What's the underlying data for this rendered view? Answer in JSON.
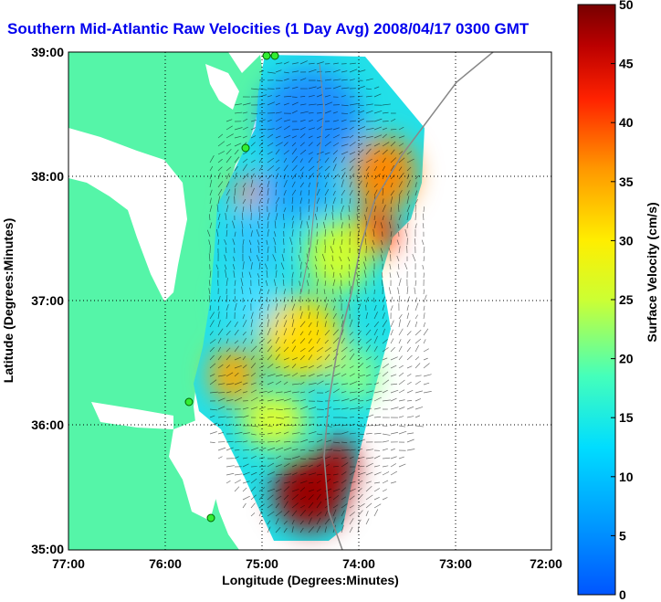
{
  "title": "Southern Mid-Atlantic Raw Velocities (1 Day Avg) 2008/04/17 0300 GMT",
  "x_axis": {
    "label": "Longitude (Degrees:Minutes)",
    "ticks": [
      "77:00",
      "76:00",
      "75:00",
      "74:00",
      "73:00",
      "72:00"
    ]
  },
  "y_axis": {
    "label": "Latitude (Degrees:Minutes)",
    "ticks": [
      "39:00",
      "38:00",
      "37:00",
      "36:00",
      "35:00"
    ]
  },
  "colorbar": {
    "label": "Surface Velocity (cm/s)",
    "ticks": [
      "50",
      "45",
      "40",
      "35",
      "30",
      "25",
      "20",
      "15",
      "10",
      "5",
      "0"
    ],
    "min": 0,
    "max": 50
  },
  "colors": {
    "land": "#55f5a8",
    "title": "#0000ee"
  }
}
